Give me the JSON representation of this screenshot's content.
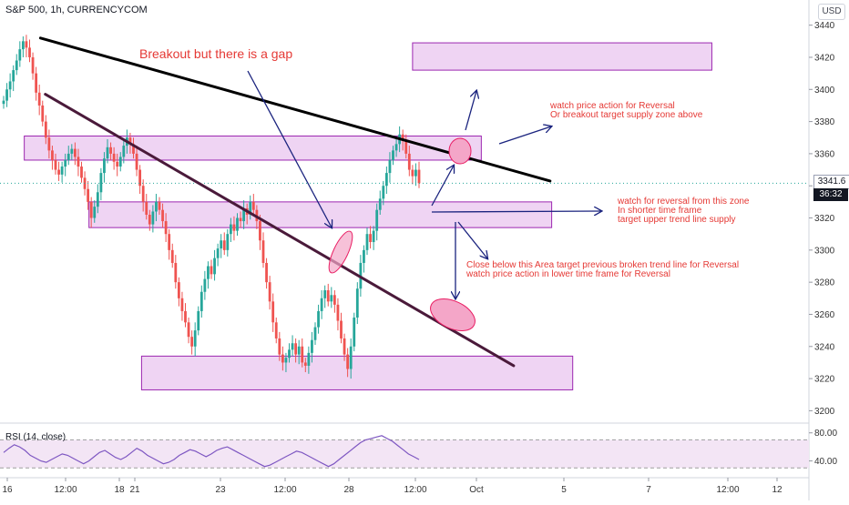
{
  "header": {
    "symbol_line": "S&P 500, 1h, CURRENCYCOM"
  },
  "currency_badge": "USD",
  "price_tag": "3341.6",
  "timer_tag": "36:32",
  "rsi_label": "RSI (14, close)",
  "colors": {
    "up": "#26a69a",
    "down": "#ef5350",
    "trend_black": "#000000",
    "trend_purple": "#4a1a3a",
    "zone_fill": "#e9c6ef",
    "zone_stroke": "#9c27b0",
    "ellipse_fill": "#f4a6c8",
    "arrow": "#1a237e",
    "note_text": "#e53935",
    "rsi_line": "#7e57c2",
    "rsi_band": "#f3e5f5"
  },
  "annotations": {
    "title_note": "Breakout but there is a gap",
    "note_upper": [
      "watch price action for Reversal",
      "Or breakout target supply zone above"
    ],
    "note_middle": [
      "watch for reversal from this zone",
      "In shorter time frame",
      "target upper trend line supply"
    ],
    "note_lower": [
      "Close below this Area target previous broken trend line for Reversal",
      "watch price action in lower time frame for Reversal"
    ]
  },
  "chart_data": {
    "type": "candlestick",
    "y_ticks": [
      3200,
      3220,
      3240,
      3260,
      3280,
      3300,
      3320,
      3340,
      3360,
      3380,
      3400,
      3420,
      3440
    ],
    "ylim": [
      3194,
      3450
    ],
    "x_ticks": [
      "16",
      "12:00",
      "18",
      "21",
      "23",
      "12:00",
      "28",
      "12:00",
      "Oct",
      "5",
      "7",
      "12:00",
      "12"
    ],
    "rsi_ticks": [
      80.0,
      40.0
    ],
    "rsi_ylim": [
      20,
      90
    ],
    "rsi_band": [
      70,
      30
    ],
    "current_price": 3341.6,
    "trend_lines": [
      {
        "name": "upper",
        "from": [
          0.05,
          3432
        ],
        "to": [
          0.68,
          3343
        ]
      },
      {
        "name": "lower",
        "from": [
          0.056,
          3397
        ],
        "to": [
          0.635,
          3228
        ]
      }
    ],
    "zones": [
      {
        "from": 0.51,
        "to": 0.88,
        "low": 3412,
        "high": 3429
      },
      {
        "from": 0.03,
        "to": 0.595,
        "low": 3356,
        "high": 3371
      },
      {
        "from": 0.11,
        "to": 0.682,
        "low": 3314,
        "high": 3330
      },
      {
        "from": 0.175,
        "to": 0.708,
        "low": 3213,
        "high": 3234
      }
    ],
    "candles_close": [
      3393,
      3400,
      3405,
      3412,
      3418,
      3425,
      3430,
      3426,
      3420,
      3410,
      3398,
      3390,
      3380,
      3370,
      3362,
      3356,
      3350,
      3347,
      3352,
      3356,
      3360,
      3363,
      3358,
      3352,
      3345,
      3338,
      3330,
      3320,
      3327,
      3336,
      3348,
      3357,
      3364,
      3360,
      3355,
      3352,
      3358,
      3365,
      3370,
      3366,
      3360,
      3350,
      3340,
      3330,
      3322,
      3316,
      3324,
      3330,
      3325,
      3318,
      3310,
      3300,
      3292,
      3280,
      3270,
      3262,
      3255,
      3246,
      3240,
      3250,
      3262,
      3274,
      3282,
      3290,
      3285,
      3295,
      3301,
      3306,
      3300,
      3310,
      3316,
      3312,
      3320,
      3318,
      3326,
      3322,
      3330,
      3325,
      3318,
      3306,
      3292,
      3280,
      3268,
      3255,
      3245,
      3235,
      3230,
      3233,
      3238,
      3242,
      3235,
      3240,
      3230,
      3228,
      3236,
      3244,
      3252,
      3262,
      3270,
      3275,
      3268,
      3272,
      3266,
      3256,
      3245,
      3235,
      3226,
      3240,
      3258,
      3276,
      3292,
      3300,
      3310,
      3305,
      3312,
      3325,
      3332,
      3340,
      3348,
      3356,
      3362,
      3366,
      3372,
      3368,
      3360,
      3350,
      3346,
      3350,
      3341.6
    ],
    "rsi_values": [
      52,
      58,
      63,
      60,
      55,
      48,
      44,
      40,
      38,
      42,
      46,
      50,
      48,
      44,
      40,
      36,
      40,
      46,
      52,
      55,
      50,
      45,
      42,
      46,
      52,
      58,
      54,
      48,
      44,
      40,
      36,
      38,
      42,
      48,
      52,
      56,
      54,
      50,
      46,
      50,
      55,
      58,
      60,
      56,
      52,
      48,
      44,
      40,
      36,
      32,
      34,
      38,
      42,
      46,
      50,
      54,
      52,
      48,
      44,
      40,
      36,
      32,
      36,
      42,
      48,
      54,
      60,
      66,
      70,
      72,
      74,
      76,
      72,
      68,
      62,
      56,
      50,
      46,
      42
    ]
  }
}
